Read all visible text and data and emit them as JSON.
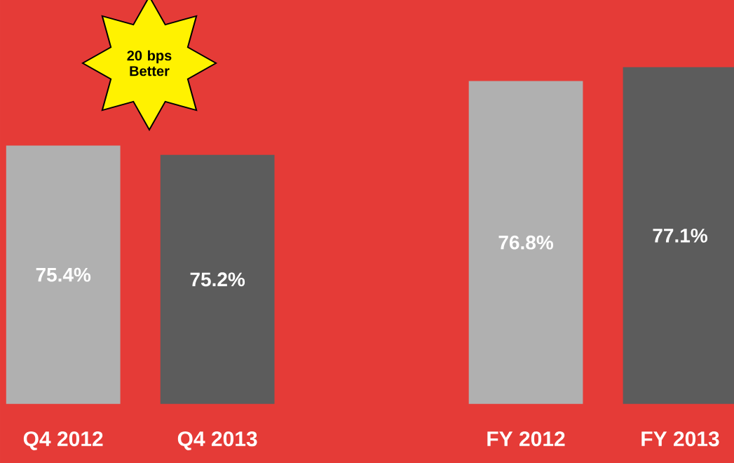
{
  "chart_data": {
    "type": "bar",
    "categories": [
      "Q4 2012",
      "Q4 2013",
      "FY 2012",
      "FY 2013"
    ],
    "values": [
      75.4,
      75.2,
      76.8,
      77.1
    ],
    "colors": [
      "#b0b0b0",
      "#5c5c5c",
      "#b0b0b0",
      "#5c5c5c"
    ],
    "value_labels": [
      "75.4%",
      "75.2%",
      "76.8%",
      "77.1%"
    ],
    "data_labels": true,
    "ylim": [
      69.8,
      77.1
    ],
    "annotations": [
      "20 bps Better"
    ]
  }
}
